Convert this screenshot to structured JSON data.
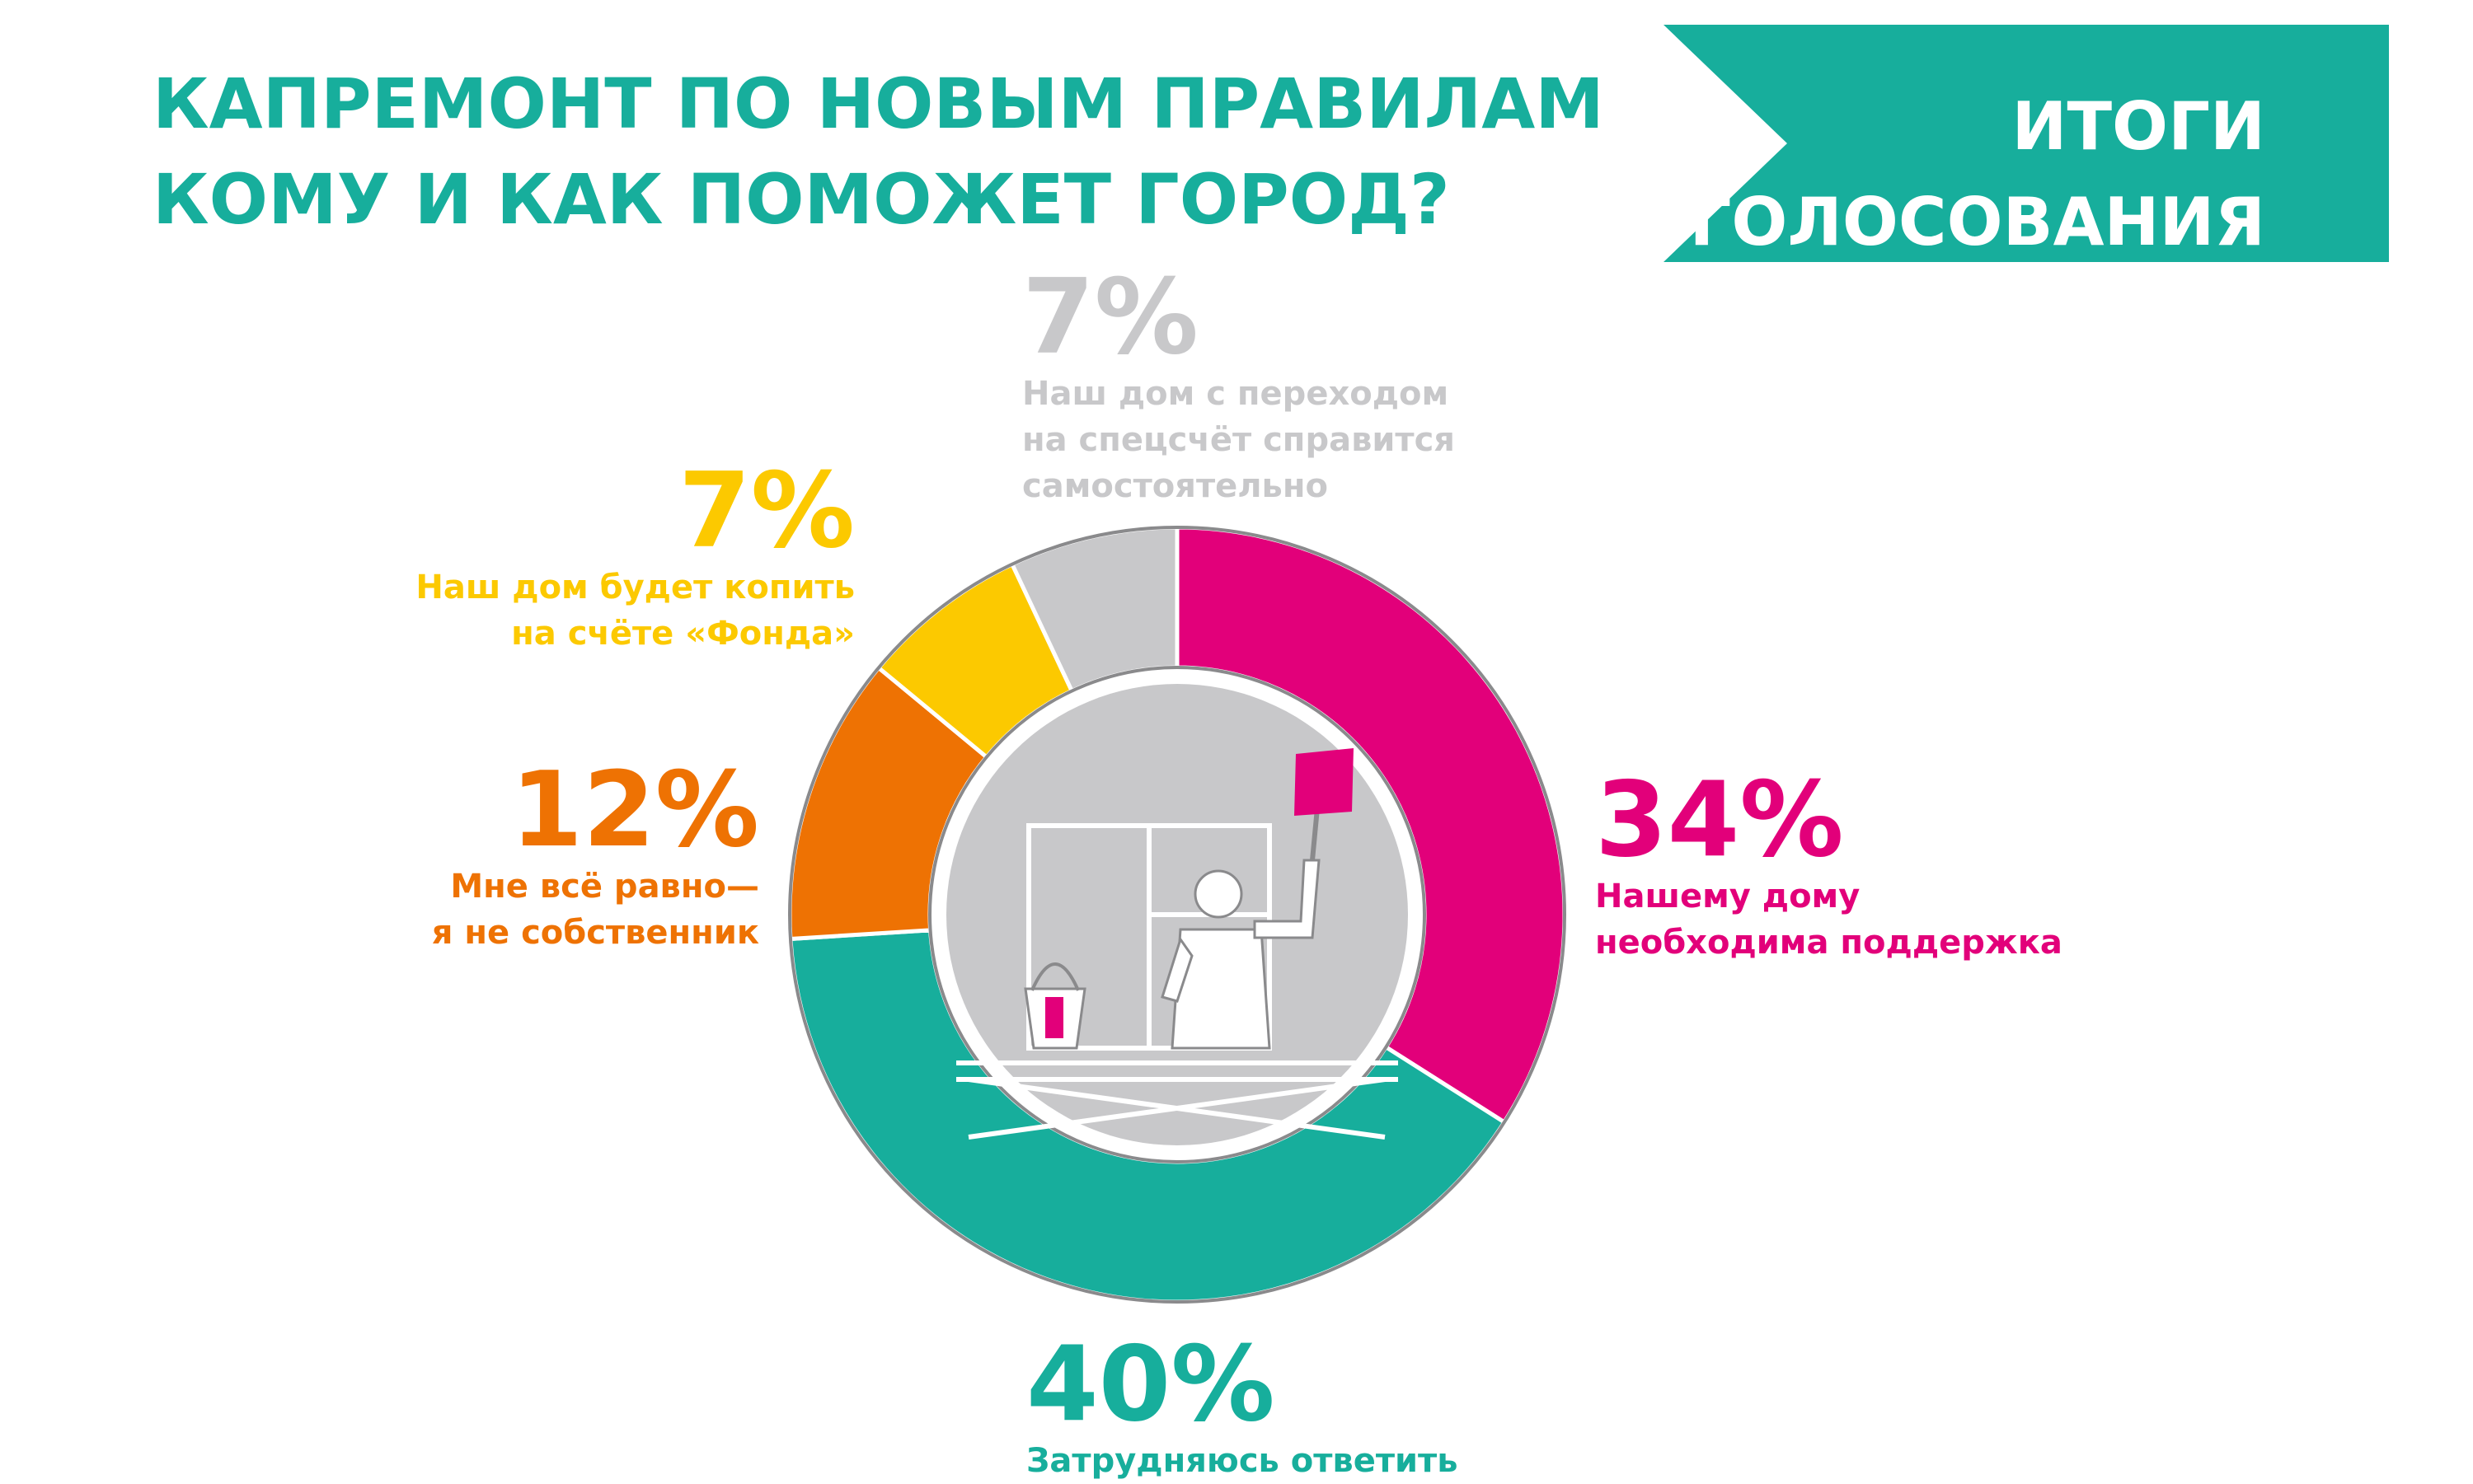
{
  "header": {
    "title_line1": "КАПРЕМОНТ ПО НОВЫМ ПРАВИЛАМ",
    "title_line2": "КОМУ И КАК ПОМОЖЕТ ГОРОД?",
    "badge_line1": "ИТОГИ",
    "badge_line2": "ГОЛОСОВАНИЯ"
  },
  "colors": {
    "teal": "#17ae9c",
    "magenta": "#e2007a",
    "orange": "#ee7203",
    "yellow": "#fcc900",
    "gray": "#c8c8ca"
  },
  "illustration": "worker-painting-wall-icon",
  "chart_data": {
    "type": "pie",
    "style": "donut",
    "unit": "%",
    "slices": [
      {
        "value": 34,
        "label": "34%",
        "desc_line1": "Нашему дому",
        "desc_line2": "необходима поддержка",
        "color": "#e2007a"
      },
      {
        "value": 40,
        "label": "40%",
        "desc_line1": "Затрудняюсь ответить",
        "desc_line2": "",
        "color": "#17ae9c"
      },
      {
        "value": 12,
        "label": "12%",
        "desc_line1": "Мне всё равно—",
        "desc_line2": "я не собственник",
        "color": "#ee7203"
      },
      {
        "value": 7,
        "label": "7%",
        "desc_line1": "Наш дом будет копить",
        "desc_line2": "на счёте «Фонда»",
        "color": "#fcc900"
      },
      {
        "value": 7,
        "label": "7%",
        "desc_line1": "Наш дом с переходом",
        "desc_line2": "на спецсчёт справится",
        "desc_line3": "самостоятельно",
        "color": "#c8c8ca"
      }
    ]
  }
}
